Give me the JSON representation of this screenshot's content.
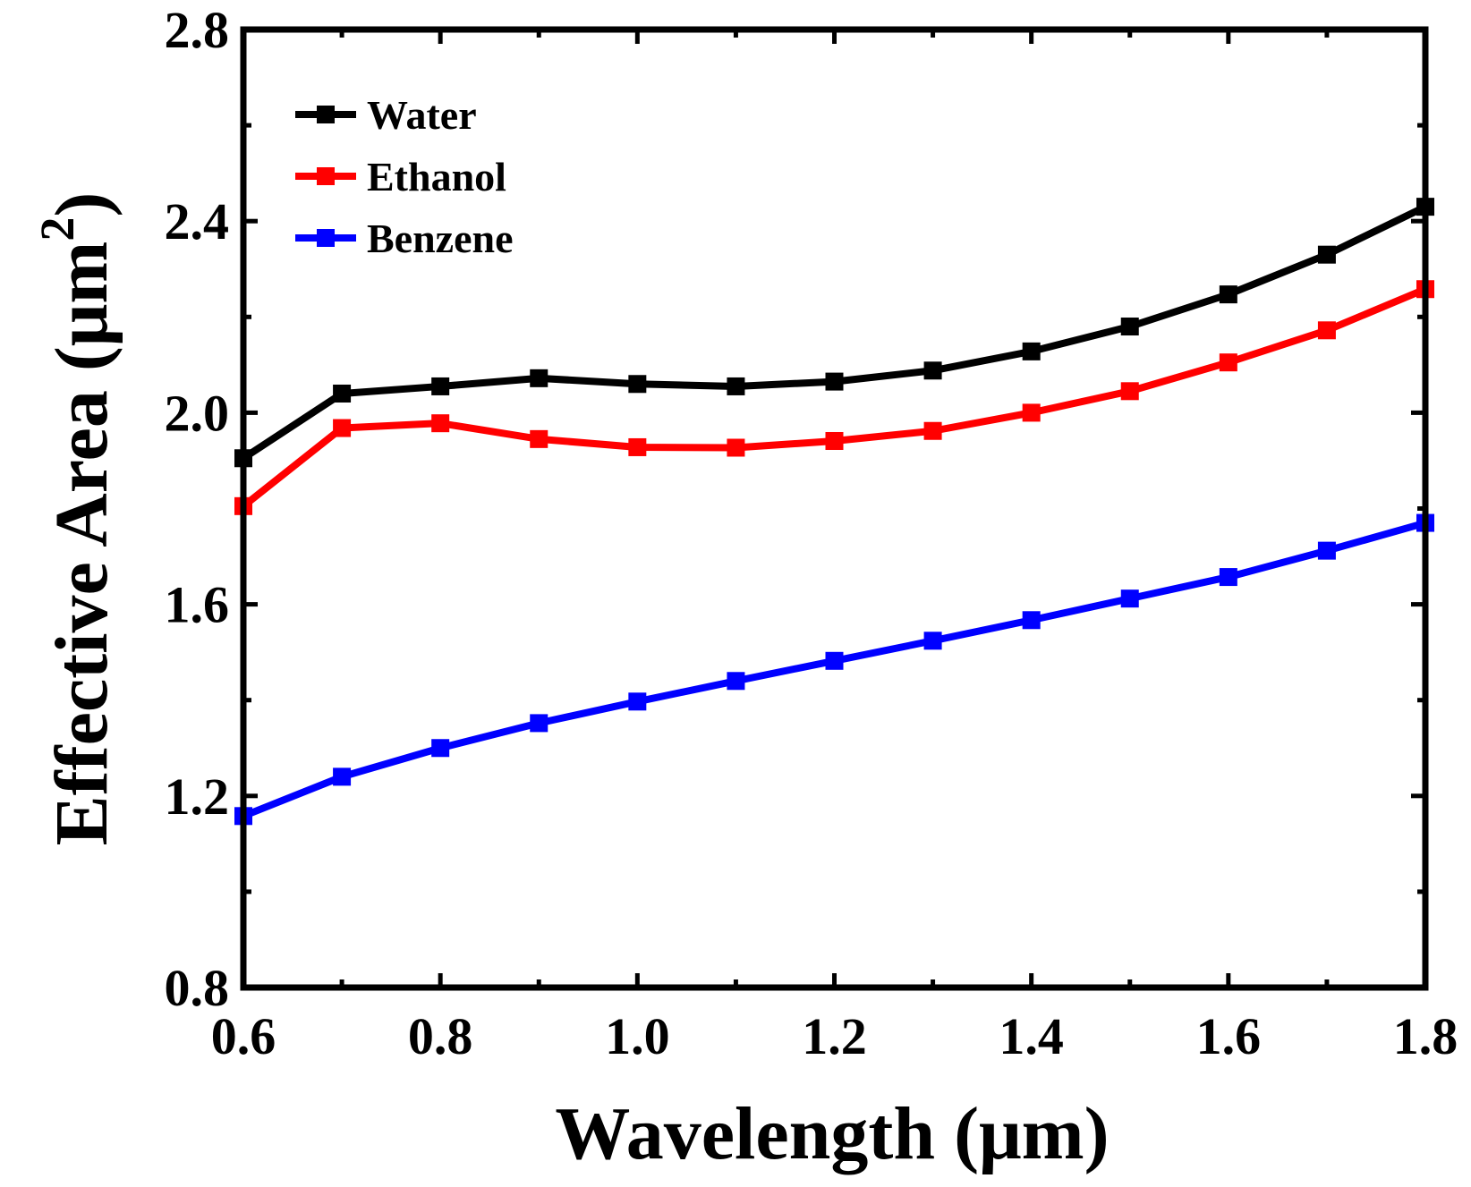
{
  "chart_data": {
    "type": "line",
    "xlabel": "Wavelength (μm)",
    "ylabel_main": "Effective Area (μm",
    "ylabel_sup": "2",
    "ylabel_close": ")",
    "xlim": [
      0.6,
      1.8
    ],
    "ylim": [
      0.8,
      2.8
    ],
    "x_ticks": [
      "0.6",
      "0.8",
      "1.0",
      "1.2",
      "1.4",
      "1.6",
      "1.8"
    ],
    "y_ticks": [
      "0.8",
      "1.2",
      "1.6",
      "2.0",
      "2.4",
      "2.8"
    ],
    "x_tick_values": [
      0.6,
      0.8,
      1.0,
      1.2,
      1.4,
      1.6,
      1.8
    ],
    "y_tick_values": [
      0.8,
      1.2,
      1.6,
      2.0,
      2.4,
      2.8
    ],
    "x_minor_step": 0.1,
    "y_minor_step": 0.2,
    "legend_position": "top-left",
    "grid": false,
    "x": [
      0.6,
      0.7,
      0.8,
      0.9,
      1.0,
      1.1,
      1.2,
      1.3,
      1.4,
      1.5,
      1.6,
      1.7,
      1.8
    ],
    "series": [
      {
        "name": "Water",
        "color": "#000000",
        "values": [
          1.905,
          2.04,
          2.055,
          2.072,
          2.06,
          2.055,
          2.065,
          2.088,
          2.128,
          2.18,
          2.247,
          2.33,
          2.43
        ]
      },
      {
        "name": "Ethanol",
        "color": "#ff0000",
        "values": [
          1.805,
          1.968,
          1.978,
          1.945,
          1.928,
          1.927,
          1.941,
          1.962,
          2.0,
          2.045,
          2.105,
          2.172,
          2.258
        ]
      },
      {
        "name": "Benzene",
        "color": "#0000ff",
        "values": [
          1.158,
          1.24,
          1.3,
          1.352,
          1.397,
          1.44,
          1.482,
          1.524,
          1.567,
          1.612,
          1.657,
          1.712,
          1.77
        ]
      }
    ]
  }
}
